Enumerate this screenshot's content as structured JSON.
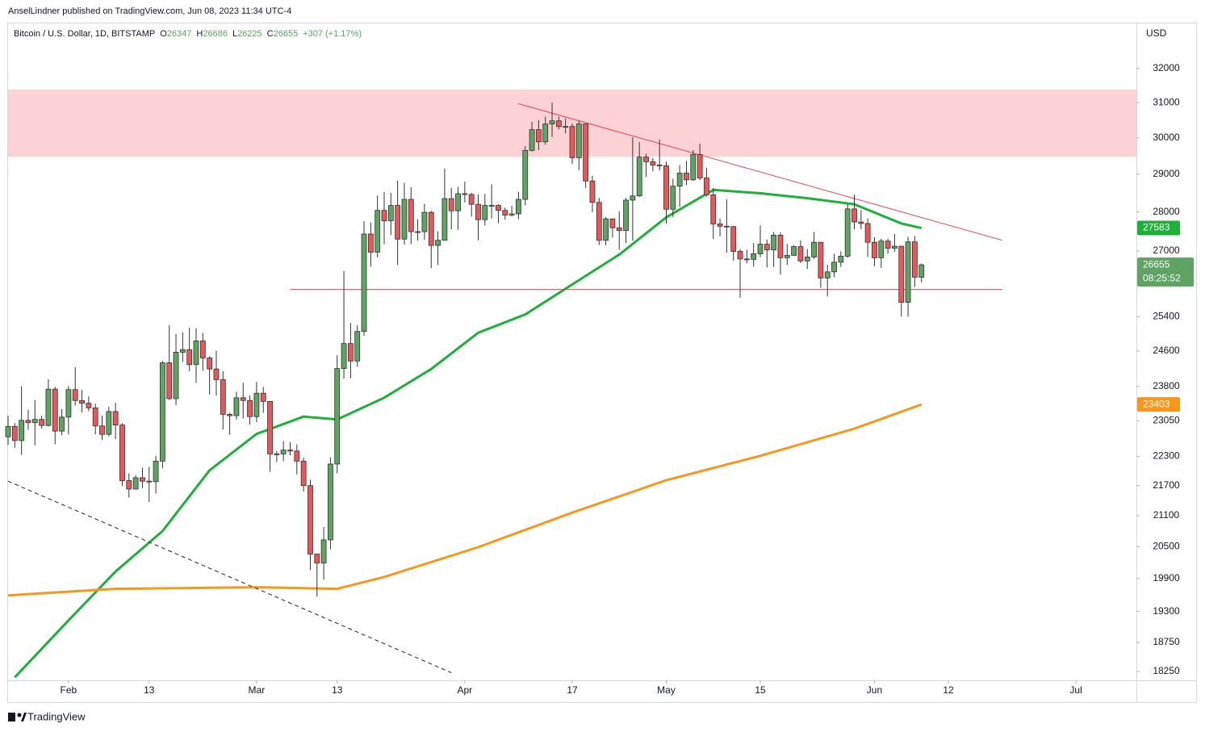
{
  "header": {
    "publisher": "AnselLindner published on TradingView.com, Jun 08, 2023 11:34 UTC-4",
    "symbol": "Bitcoin / U.S. Dollar, 1D, BITSTAMP",
    "ohlc_labels": [
      "O",
      "H",
      "L",
      "C"
    ],
    "ohlc_values": [
      26347,
      26686,
      26225,
      26655
    ],
    "change": "+307 (+1.17%)",
    "currency": "USD"
  },
  "footer": {
    "brand": "TradingView"
  },
  "chart_data": {
    "type": "candlestick",
    "log": true,
    "up_color": "#5fa463",
    "down_color": "#e8585b",
    "xlim": [
      "2023-01-23",
      "2023-07-10"
    ],
    "xticks": [
      {
        "value": "2023-02-01",
        "label": "Feb"
      },
      {
        "value": "2023-02-13",
        "label": "13"
      },
      {
        "value": "2023-03-01",
        "label": "Mar"
      },
      {
        "value": "2023-03-13",
        "label": "13"
      },
      {
        "value": "2023-04-01",
        "label": "Apr"
      },
      {
        "value": "2023-04-17",
        "label": "17"
      },
      {
        "value": "2023-05-01",
        "label": "May"
      },
      {
        "value": "2023-05-15",
        "label": "15"
      },
      {
        "value": "2023-06-01",
        "label": "Jun"
      },
      {
        "value": "2023-06-12",
        "label": "12"
      },
      {
        "value": "2023-07-01",
        "label": "Jul"
      }
    ],
    "ylim": [
      18100,
      33400
    ],
    "yticks": [
      32000,
      31000,
      30000,
      29000,
      28000,
      27000,
      25400,
      24600,
      23800,
      23050,
      22300,
      21700,
      21100,
      20500,
      19900,
      19300,
      18750,
      18250
    ],
    "x": [
      "2023-01-23",
      "2023-01-24",
      "2023-01-25",
      "2023-01-26",
      "2023-01-27",
      "2023-01-28",
      "2023-01-29",
      "2023-01-30",
      "2023-01-31",
      "2023-02-01",
      "2023-02-02",
      "2023-02-03",
      "2023-02-04",
      "2023-02-05",
      "2023-02-06",
      "2023-02-07",
      "2023-02-08",
      "2023-02-09",
      "2023-02-10",
      "2023-02-11",
      "2023-02-12",
      "2023-02-13",
      "2023-02-14",
      "2023-02-15",
      "2023-02-16",
      "2023-02-17",
      "2023-02-18",
      "2023-02-19",
      "2023-02-20",
      "2023-02-21",
      "2023-02-22",
      "2023-02-23",
      "2023-02-24",
      "2023-02-25",
      "2023-02-26",
      "2023-02-27",
      "2023-02-28",
      "2023-03-01",
      "2023-03-02",
      "2023-03-03",
      "2023-03-04",
      "2023-03-05",
      "2023-03-06",
      "2023-03-07",
      "2023-03-08",
      "2023-03-09",
      "2023-03-10",
      "2023-03-11",
      "2023-03-12",
      "2023-03-13",
      "2023-03-14",
      "2023-03-15",
      "2023-03-16",
      "2023-03-17",
      "2023-03-18",
      "2023-03-19",
      "2023-03-20",
      "2023-03-21",
      "2023-03-22",
      "2023-03-23",
      "2023-03-24",
      "2023-03-25",
      "2023-03-26",
      "2023-03-27",
      "2023-03-28",
      "2023-03-29",
      "2023-03-30",
      "2023-03-31",
      "2023-04-01",
      "2023-04-02",
      "2023-04-03",
      "2023-04-04",
      "2023-04-05",
      "2023-04-06",
      "2023-04-07",
      "2023-04-08",
      "2023-04-09",
      "2023-04-10",
      "2023-04-11",
      "2023-04-12",
      "2023-04-13",
      "2023-04-14",
      "2023-04-15",
      "2023-04-16",
      "2023-04-17",
      "2023-04-18",
      "2023-04-19",
      "2023-04-20",
      "2023-04-21",
      "2023-04-22",
      "2023-04-23",
      "2023-04-24",
      "2023-04-25",
      "2023-04-26",
      "2023-04-27",
      "2023-04-28",
      "2023-04-29",
      "2023-04-30",
      "2023-05-01",
      "2023-05-02",
      "2023-05-03",
      "2023-05-04",
      "2023-05-05",
      "2023-05-06",
      "2023-05-07",
      "2023-05-08",
      "2023-05-09",
      "2023-05-10",
      "2023-05-11",
      "2023-05-12",
      "2023-05-13",
      "2023-05-14",
      "2023-05-15",
      "2023-05-16",
      "2023-05-17",
      "2023-05-18",
      "2023-05-19",
      "2023-05-20",
      "2023-05-21",
      "2023-05-22",
      "2023-05-23",
      "2023-05-24",
      "2023-05-25",
      "2023-05-26",
      "2023-05-27",
      "2023-05-28",
      "2023-05-29",
      "2023-05-30",
      "2023-05-31",
      "2023-06-01",
      "2023-06-02",
      "2023-06-03",
      "2023-06-04",
      "2023-06-05",
      "2023-06-06",
      "2023-06-07",
      "2023-06-08"
    ],
    "open": [
      22710,
      22930,
      22630,
      23060,
      23010,
      23080,
      22950,
      23740,
      22830,
      23130,
      23730,
      23490,
      23430,
      23330,
      22940,
      22760,
      23250,
      22960,
      21800,
      21630,
      21860,
      21790,
      21780,
      22200,
      24330,
      23530,
      24570,
      24630,
      24290,
      24830,
      24440,
      24190,
      23950,
      23190,
      23160,
      23550,
      23490,
      23140,
      23650,
      23470,
      22350,
      22350,
      22430,
      22410,
      22200,
      21700,
      20360,
      20190,
      20630,
      22140,
      24200,
      24770,
      24370,
      25050,
      27430,
      26970,
      28040,
      27770,
      28170,
      27300,
      28330,
      27490,
      27490,
      27990,
      27140,
      27270,
      28350,
      28030,
      28480,
      28460,
      28200,
      27800,
      28170,
      28170,
      28040,
      27920,
      27950,
      28330,
      29650,
      30230,
      29890,
      30390,
      30480,
      30320,
      30320,
      29450,
      30390,
      28820,
      28250,
      27270,
      27820,
      27590,
      27520,
      28310,
      28420,
      29470,
      29340,
      29250,
      29230,
      28070,
      28680,
      29030,
      28850,
      29540,
      28900,
      28450,
      27690,
      27630,
      27620,
      26990,
      26800,
      26790,
      26930,
      27170,
      27030,
      27400,
      26830,
      26890,
      27110,
      26750,
      26850,
      27220,
      26330,
      26480,
      26720,
      26870,
      28080,
      27740,
      27700,
      27220,
      26830,
      27250,
      27070,
      27120,
      25740,
      27230,
      26347
    ],
    "high": [
      23160,
      23000,
      23800,
      23290,
      23500,
      23160,
      23960,
      23790,
      23300,
      23810,
      24230,
      23720,
      23580,
      23420,
      23160,
      23350,
      23440,
      23000,
      21950,
      21910,
      22070,
      22080,
      22310,
      24370,
      25200,
      24990,
      25030,
      25140,
      25120,
      25020,
      24480,
      24600,
      24140,
      23220,
      23680,
      23880,
      23600,
      23900,
      23790,
      23480,
      22410,
      22620,
      22600,
      22550,
      22270,
      21820,
      20360,
      20880,
      22280,
      24500,
      26500,
      25250,
      25200,
      27760,
      27730,
      28430,
      28520,
      28500,
      28830,
      28770,
      28650,
      27810,
      28210,
      28030,
      27500,
      29150,
      28640,
      28660,
      28800,
      28500,
      28460,
      28470,
      28730,
      28200,
      28110,
      28160,
      28530,
      29770,
      30450,
      30500,
      30600,
      31000,
      30600,
      30550,
      30400,
      30480,
      30410,
      28960,
      28370,
      27870,
      27830,
      28020,
      28370,
      30020,
      29880,
      29560,
      29440,
      29950,
      29340,
      28880,
      29250,
      29360,
      29660,
      29840,
      29180,
      28630,
      27830,
      28330,
      27640,
      27050,
      27030,
      27200,
      27650,
      27290,
      27480,
      27470,
      27180,
      27150,
      27270,
      27050,
      27480,
      27220,
      26650,
      26930,
      26990,
      28200,
      28450,
      28050,
      27830,
      27350,
      27310,
      27310,
      27430,
      27130,
      27360,
      27380,
      26686
    ],
    "low": [
      22540,
      22480,
      22330,
      22860,
      22530,
      22880,
      22930,
      22550,
      22740,
      22760,
      23380,
      23230,
      23260,
      22760,
      22640,
      22720,
      22660,
      21690,
      21460,
      21620,
      21650,
      21370,
      21540,
      22050,
      23500,
      23390,
      24350,
      24140,
      23880,
      24150,
      23620,
      23600,
      22860,
      22750,
      23080,
      23100,
      22970,
      23020,
      23220,
      21980,
      22180,
      22200,
      22320,
      21930,
      21580,
      20060,
      19570,
      19880,
      20450,
      21950,
      23970,
      23980,
      24240,
      24950,
      26610,
      26840,
      27170,
      27400,
      26650,
      27160,
      27170,
      27260,
      27280,
      26570,
      26650,
      27270,
      27550,
      27540,
      28250,
      27880,
      27270,
      27650,
      27830,
      27710,
      27800,
      27880,
      27810,
      28170,
      29620,
      29660,
      29810,
      30030,
      30240,
      30130,
      29280,
      29110,
      28630,
      27990,
      27150,
      27140,
      27340,
      27030,
      27200,
      27260,
      28400,
      28930,
      29080,
      29100,
      27700,
      27870,
      28130,
      28710,
      28820,
      28840,
      28400,
      27300,
      27370,
      26960,
      26760,
      25850,
      26690,
      26610,
      26850,
      26590,
      26600,
      26410,
      26650,
      26880,
      26700,
      26550,
      26800,
      26090,
      25880,
      26350,
      26600,
      26830,
      27550,
      27560,
      26850,
      26620,
      26580,
      26930,
      26980,
      25400,
      25400,
      26110,
      26225
    ],
    "close": [
      22930,
      22630,
      23060,
      23010,
      23080,
      22950,
      23740,
      22830,
      23130,
      23730,
      23490,
      23430,
      23330,
      22940,
      22760,
      23250,
      22960,
      21800,
      21630,
      21860,
      21790,
      21780,
      22200,
      24330,
      23530,
      24570,
      24630,
      24290,
      24830,
      24440,
      24190,
      23950,
      23190,
      23160,
      23550,
      23490,
      23140,
      23650,
      23470,
      22350,
      22350,
      22430,
      22410,
      22200,
      21700,
      20360,
      20190,
      20630,
      22140,
      24200,
      24770,
      24370,
      25050,
      27430,
      26970,
      28040,
      27770,
      28170,
      27300,
      28330,
      27490,
      27490,
      27990,
      27140,
      27270,
      28350,
      28030,
      28480,
      28460,
      28200,
      27800,
      28170,
      28170,
      28040,
      27920,
      27950,
      28330,
      29650,
      30230,
      29890,
      30390,
      30480,
      30320,
      30320,
      29450,
      30390,
      28820,
      28250,
      27270,
      27820,
      27590,
      27520,
      28310,
      28420,
      29470,
      29340,
      29250,
      29230,
      28070,
      28680,
      29030,
      28850,
      29540,
      28900,
      28450,
      27690,
      27630,
      27620,
      26990,
      26800,
      26790,
      26930,
      27170,
      27030,
      27400,
      26830,
      26890,
      27110,
      26750,
      26850,
      27220,
      26330,
      26480,
      26720,
      26870,
      28080,
      27740,
      27700,
      27220,
      26830,
      27250,
      27070,
      27120,
      25740,
      27230,
      26350,
      26655
    ],
    "zone": {
      "values": [
        31380,
        29480
      ],
      "color": "#fdd2d4"
    },
    "lines": [
      {
        "color": "#1fb03c",
        "width": 3,
        "x": [
          "2023-01-24",
          "2023-02-01",
          "2023-02-08",
          "2023-02-15",
          "2023-02-22",
          "2023-03-01",
          "2023-03-08",
          "2023-03-13",
          "2023-03-20",
          "2023-03-27",
          "2023-04-03",
          "2023-04-10",
          "2023-04-17",
          "2023-04-24",
          "2023-05-01",
          "2023-05-08",
          "2023-05-15",
          "2023-05-22",
          "2023-05-29",
          "2023-06-05",
          "2023-06-08"
        ],
        "values": [
          18150,
          19140,
          20030,
          20800,
          22010,
          22770,
          23140,
          23080,
          23550,
          24190,
          25020,
          25450,
          26170,
          26910,
          27860,
          28580,
          28490,
          28360,
          28200,
          27700,
          27583
        ]
      },
      {
        "color": "#f7981d",
        "width": 3,
        "x": [
          "2023-01-23",
          "2023-02-08",
          "2023-03-01",
          "2023-03-13",
          "2023-03-20",
          "2023-04-03",
          "2023-04-17",
          "2023-05-01",
          "2023-05-15",
          "2023-05-29",
          "2023-06-08"
        ],
        "values": [
          19590,
          19710,
          19740,
          19710,
          19930,
          20490,
          21160,
          21810,
          22310,
          22880,
          23403
        ]
      },
      {
        "color": "#e8434e",
        "width": 1,
        "x": [
          "2023-04-09",
          "2023-06-20"
        ],
        "values": [
          30970,
          27270
        ]
      },
      {
        "color": "#e8434e",
        "width": 1,
        "x": [
          "2023-03-06",
          "2023-06-20"
        ],
        "values": [
          26050,
          26050
        ]
      },
      {
        "color": "#222222",
        "width": 1,
        "dash": true,
        "x": [
          "2023-01-23",
          "2023-03-30"
        ],
        "values": [
          21790,
          18230
        ]
      }
    ],
    "price_labels": [
      {
        "value": 27583,
        "color": "#1fb03c"
      },
      {
        "value": 23403,
        "color": "#f7981d"
      },
      {
        "value": 26655,
        "color": "#5fa463",
        "countdown": "08:25:52"
      }
    ]
  }
}
